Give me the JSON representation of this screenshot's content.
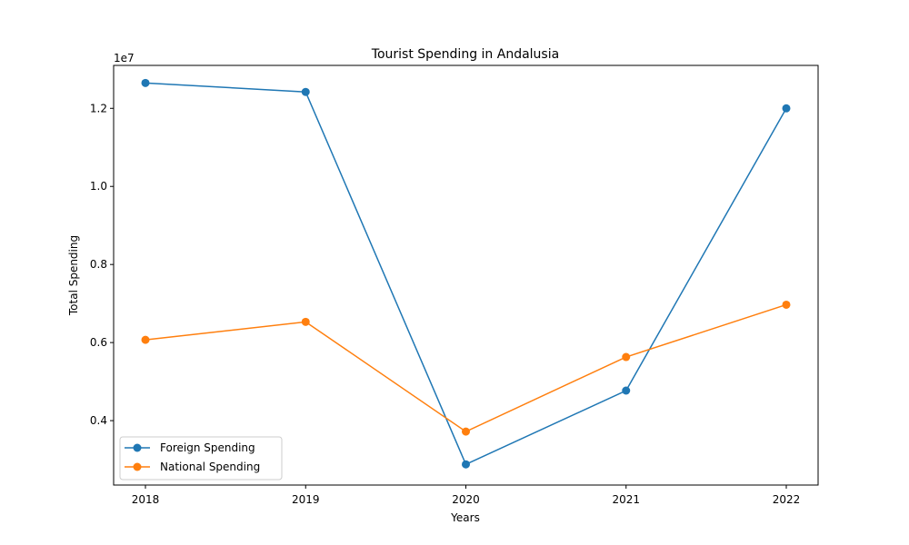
{
  "chart_data": {
    "type": "line",
    "title": "Tourist Spending in Andalusia",
    "xlabel": "Years",
    "ylabel": "Total Spending",
    "y_offset_label": "1e7",
    "categories": [
      "2018",
      "2019",
      "2020",
      "2021",
      "2022"
    ],
    "y_ticks": [
      "0.4",
      "0.6",
      "0.8",
      "1.0",
      "1.2"
    ],
    "ylim": [
      2350000,
      13100000
    ],
    "grid": false,
    "legend_position": "lower-left",
    "series": [
      {
        "name": "Foreign Spending",
        "color": "#1f77b4",
        "values": [
          12650000,
          12420000,
          2880000,
          4770000,
          12000000
        ]
      },
      {
        "name": "National Spending",
        "color": "#ff7f0e",
        "values": [
          6070000,
          6530000,
          3720000,
          5630000,
          6970000
        ]
      }
    ]
  }
}
